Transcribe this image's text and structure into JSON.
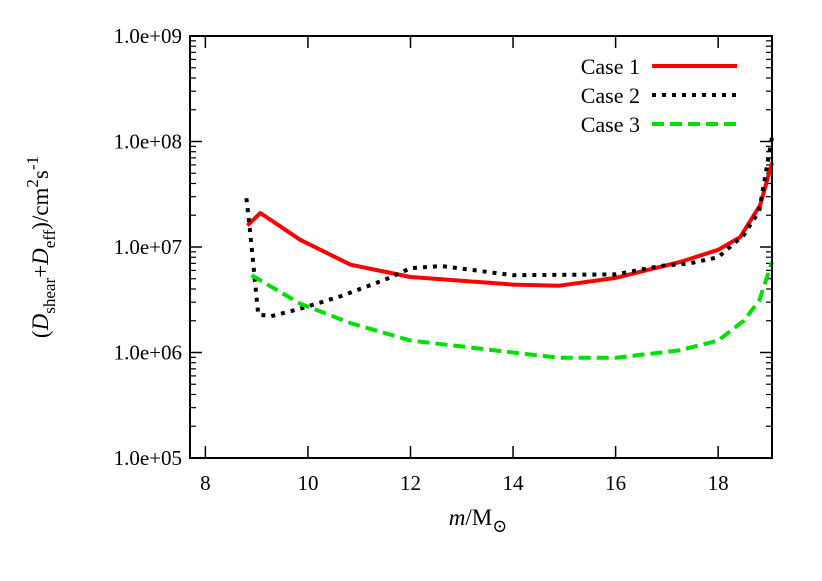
{
  "chart_data": {
    "type": "line",
    "xlabel": {
      "italic": "m",
      "rest": "/M",
      "sub": "⊙"
    },
    "ylabel": {
      "open": "(",
      "d1": "D",
      "sub1": "shear",
      "plus": "+",
      "d2": "D",
      "sub2": "eff",
      "unit": ")/cm",
      "sup1": "2",
      "s": "s",
      "sup2": "-1"
    },
    "xlim": [
      7.7,
      19.05
    ],
    "ylim": [
      100000.0,
      1000000000.0
    ],
    "yscale": "log",
    "x_ticks": [
      "8",
      "10",
      "12",
      "14",
      "16",
      "18"
    ],
    "y_ticks": [
      "1.0e+05",
      "1.0e+06",
      "1.0e+07",
      "1.0e+08",
      "1.0e+09"
    ],
    "grid": false,
    "legend_position": "top-right",
    "series": [
      {
        "name": "Case 1",
        "color": "#ff0000",
        "style": "solid",
        "x": [
          8.82,
          9.07,
          9.85,
          10.83,
          12.0,
          14.0,
          14.9,
          16.0,
          17.25,
          18.0,
          18.43,
          18.82,
          19.05
        ],
        "y": [
          16000000.0,
          21000000.0,
          11700000.0,
          6800000.0,
          5200000.0,
          4400000.0,
          4300000.0,
          5100000.0,
          7200000.0,
          9400000.0,
          12400000.0,
          25000000.0,
          63000000.0
        ]
      },
      {
        "name": "Case 2",
        "color": "#000000",
        "style": "dotted",
        "x": [
          8.8,
          8.86,
          9.03,
          9.27,
          9.85,
          10.63,
          11.5,
          12.0,
          12.6,
          14.0,
          16.0,
          16.87,
          17.45,
          18.0,
          18.5,
          18.8,
          19.05
        ],
        "y": [
          29000000.0,
          16000000.0,
          2300000.0,
          2200000.0,
          2600000.0,
          3400000.0,
          4900000.0,
          6300000.0,
          6600000.0,
          5400000.0,
          5500000.0,
          6600000.0,
          7000000.0,
          8000000.0,
          13000000.0,
          22000000.0,
          110000000.0
        ]
      },
      {
        "name": "Case 3",
        "color": "#00e000",
        "style": "dashed",
        "x": [
          8.9,
          9.85,
          10.83,
          12.0,
          14.0,
          14.9,
          16.0,
          17.25,
          18.0,
          18.5,
          18.8,
          19.05
        ],
        "y": [
          5400000.0,
          2900000.0,
          1900000.0,
          1300000.0,
          1000000.0,
          890000.0,
          890000.0,
          1050000.0,
          1300000.0,
          2000000.0,
          3100000.0,
          7200000.0
        ]
      }
    ]
  }
}
